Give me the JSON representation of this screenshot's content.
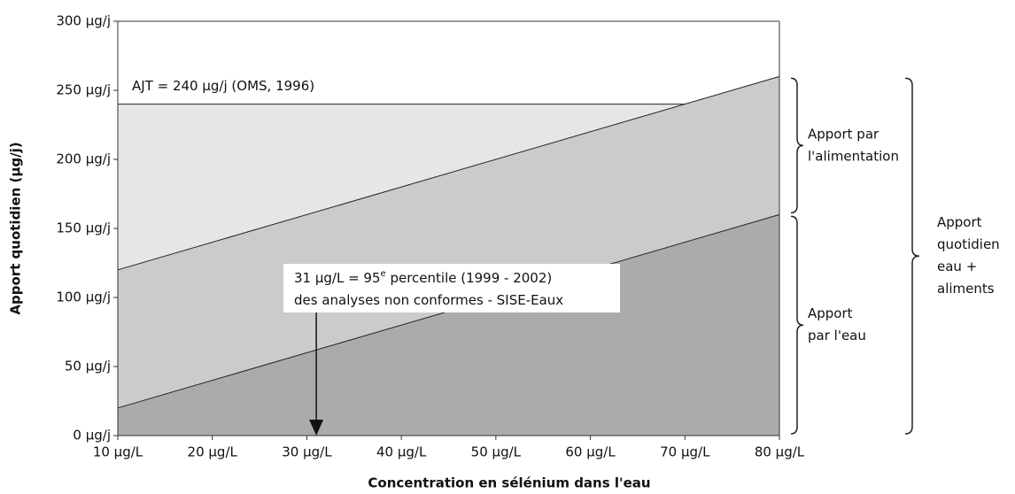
{
  "chart_data": {
    "type": "stacked_area",
    "xlabel": "Concentration en sélénium dans l'eau",
    "ylabel": "Apport quotidien (µg/j)",
    "x": [
      10,
      80
    ],
    "series": [
      {
        "name": [
          "Apport",
          "par l'eau"
        ],
        "color": "#ababab",
        "values": [
          20,
          160
        ]
      },
      {
        "name": [
          "Apport par",
          "l'alimentation"
        ],
        "color": "#cbcbcb",
        "values": [
          100,
          100
        ]
      }
    ],
    "total_label": [
      "Apport",
      "quotidien",
      "eau +",
      "aliments"
    ],
    "reference_line": {
      "value": 240,
      "label": "AJT = 240 µg/j (OMS, 1996)",
      "color": "#e6e6e6"
    },
    "annotation": {
      "x": 31,
      "lines": [
        [
          "31 µg/L = 95",
          "e",
          " percentile (1999 - 2002)"
        ],
        [
          "des analyses non conformes - SISE-Eaux"
        ]
      ]
    },
    "xlim": [
      10,
      80
    ],
    "ylim": [
      0,
      300
    ],
    "xticks": [
      {
        "value": 10,
        "label": "10 µg/L"
      },
      {
        "value": 20,
        "label": "20 µg/L"
      },
      {
        "value": 30,
        "label": "30 µg/L"
      },
      {
        "value": 40,
        "label": "40 µg/L"
      },
      {
        "value": 50,
        "label": "50 µg/L"
      },
      {
        "value": 60,
        "label": "60 µg/L"
      },
      {
        "value": 70,
        "label": "70 µg/L"
      },
      {
        "value": 80,
        "label": "80 µg/L"
      }
    ],
    "yticks": [
      {
        "value": 0,
        "label": "0 µg/j"
      },
      {
        "value": 50,
        "label": "50 µg/j"
      },
      {
        "value": 100,
        "label": "100 µg/j"
      },
      {
        "value": 150,
        "label": "150 µg/j"
      },
      {
        "value": 200,
        "label": "200 µg/j"
      },
      {
        "value": 250,
        "label": "250 µg/j"
      },
      {
        "value": 300,
        "label": "300 µg/j"
      }
    ]
  }
}
